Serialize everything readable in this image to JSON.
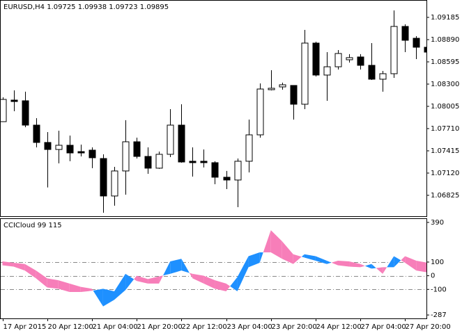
{
  "chart_data": [
    {
      "type": "candlestick",
      "title": "EURUSD,H4 1.09725 1.09938 1.09723 1.09895",
      "categories": [
        "17 Apr 2015",
        null,
        null,
        null,
        "20 Apr 12:00",
        null,
        null,
        null,
        "21 Apr 04:00",
        null,
        null,
        null,
        "21 Apr 20:00",
        null,
        null,
        null,
        "22 Apr 12:00",
        null,
        null,
        null,
        "23 Apr 04:00",
        null,
        null,
        null,
        "23 Apr 20:00",
        null,
        null,
        null,
        "24 Apr 12:00",
        null,
        null,
        null,
        "27 Apr 04:00",
        null,
        null,
        null,
        "27 Apr 20:00",
        null,
        null
      ],
      "open": [
        1.07802,
        1.08088,
        1.08079,
        1.07756,
        1.07526,
        1.07433,
        1.07489,
        1.07405,
        1.07424,
        1.07313,
        1.06816,
        1.07148,
        1.07535,
        1.07341,
        1.07185,
        1.07369,
        1.07756,
        1.07277,
        1.07277,
        1.07258,
        1.07065,
        1.07028,
        1.07277,
        1.07627,
        1.08226,
        1.08263,
        1.08282,
        1.08033,
        1.08844,
        1.0842,
        1.0853,
        1.08623,
        1.0866,
        1.08549,
        1.08365,
        1.08438,
        1.09065,
        1.08908,
        1.08789
      ],
      "high": [
        1.08125,
        1.08217,
        1.08199,
        1.07848,
        1.07664,
        1.07682,
        1.07618,
        1.07498,
        1.07461,
        1.07369,
        1.07203,
        1.07821,
        1.0759,
        1.07461,
        1.07406,
        1.07968,
        1.08033,
        1.07461,
        1.07433,
        1.07277,
        1.07148,
        1.07313,
        1.0783,
        1.08309,
        1.08484,
        1.08319,
        1.08282,
        1.09019,
        1.08862,
        1.08724,
        1.08752,
        1.08697,
        1.08697,
        1.08844,
        1.08475,
        1.09277,
        1.09093,
        1.08936,
        1.08844
      ],
      "low": [
        1.07802,
        1.0794,
        1.07728,
        1.07461,
        1.06929,
        1.07249,
        1.07277,
        1.07341,
        1.07185,
        1.06594,
        1.06687,
        1.06834,
        1.07313,
        1.07111,
        1.07176,
        1.07332,
        1.07258,
        1.07074,
        1.07194,
        1.06972,
        1.06908,
        1.06668,
        1.07129,
        1.0759,
        1.08217,
        1.08226,
        1.0783,
        1.07968,
        1.08401,
        1.08079,
        1.08494,
        1.08586,
        1.08494,
        1.08355,
        1.08199,
        1.08383,
        1.08724,
        1.08632,
        1.08696
      ],
      "close": [
        1.08097,
        1.08069,
        1.07756,
        1.07526,
        1.07433,
        1.07489,
        1.07387,
        1.07387,
        1.07323,
        1.06816,
        1.07148,
        1.07535,
        1.07341,
        1.07185,
        1.07369,
        1.07756,
        1.07267,
        1.07258,
        1.07258,
        1.07065,
        1.07028,
        1.07277,
        1.07627,
        1.08235,
        1.08245,
        1.08291,
        1.08033,
        1.08844,
        1.0842,
        1.0853,
        1.08706,
        1.08651,
        1.08549,
        1.08365,
        1.08438,
        1.09065,
        1.08881,
        1.08789,
        1.08724
      ],
      "up_color": "#ffffff",
      "down_color": "#000000",
      "ylim": [
        1.06548,
        1.09397
      ],
      "yticks": [
        1.09185,
        {
          "value": 1.0889,
          "label": "1.08890"
        },
        1.08595,
        {
          "value": 1.083,
          "label": "1.08300"
        },
        1.08005,
        {
          "value": 1.0771,
          "label": "1.07710"
        },
        1.07415,
        {
          "value": 1.0712,
          "label": "1.07120"
        },
        1.06825
      ]
    },
    {
      "type": "cloud",
      "title": "CCICloud 99 115",
      "series": [
        {
          "color": "#1e90ff",
          "values": [
            76,
            67,
            38,
            -19,
            -86,
            -95,
            -119,
            -119,
            -110,
            -95,
            -114,
            14,
            -38,
            -57,
            -57,
            105,
            124,
            -19,
            -57,
            -95,
            -114,
            -10,
            143,
            171,
            171,
            124,
            86,
            157,
            143,
            110,
            76,
            67,
            62,
            86,
            14,
            143,
            95,
            38,
            24
          ]
        },
        {
          "color": "#f77eb9",
          "values": [
            105,
            95,
            86,
            38,
            -19,
            -33,
            -57,
            -81,
            -95,
            -224,
            -176,
            -105,
            0,
            -24,
            -5,
            14,
            38,
            14,
            0,
            -33,
            -57,
            -114,
            62,
            95,
            333,
            252,
            157,
            133,
            110,
            86,
            110,
            105,
            86,
            52,
            62,
            62,
            143,
            110,
            95
          ]
        }
      ],
      "levels": [
        100,
        0,
        -100
      ],
      "ylim": [
        -312,
        415
      ],
      "yticks": [
        390,
        100,
        0,
        -100,
        -287
      ]
    }
  ]
}
